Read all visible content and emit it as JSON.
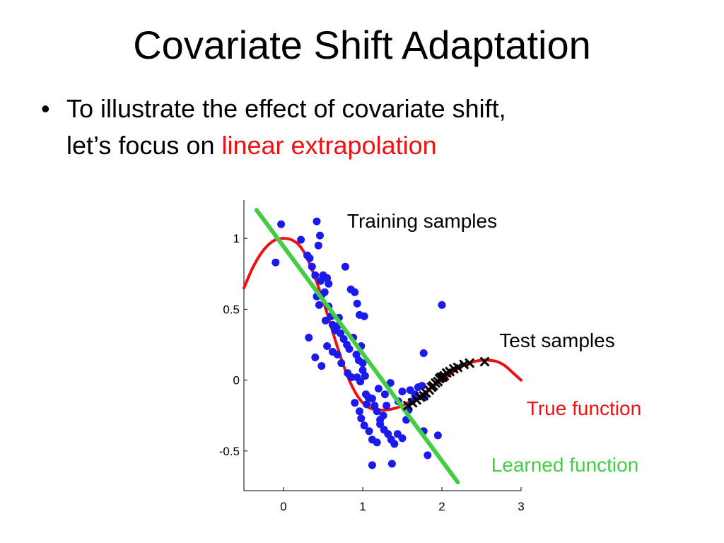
{
  "slide": {
    "title": "Covariate Shift Adaptation",
    "bullet": {
      "marker": "•",
      "line1": "To illustrate the effect of covariate shift,",
      "line2_prefix": "let’s focus on ",
      "line2_highlight": "linear extrapolation"
    }
  },
  "colors": {
    "highlight": "#ee1111",
    "true_function": "#ee1111",
    "learned_function": "#44cc44",
    "training": "#1a1aee",
    "test": "#000000"
  },
  "chart_data": {
    "type": "scatter",
    "xlim": [
      -0.5,
      3
    ],
    "ylim": [
      -0.78,
      1.27
    ],
    "xticks": [
      0,
      1,
      2,
      3
    ],
    "yticks": [
      1,
      0.5,
      0,
      -0.5
    ],
    "xtick_labels": [
      "0",
      "1",
      "2",
      "3"
    ],
    "ytick_labels": [
      "1",
      "0.5",
      "0",
      "-0.5"
    ],
    "grid": false,
    "annotations": {
      "training": "Training samples",
      "test": "Test samples",
      "true_function": "True function",
      "learned_function": "Learned function"
    },
    "true_function_points": [
      [
        -0.5,
        0.65
      ],
      [
        -0.4,
        0.78
      ],
      [
        -0.3,
        0.88
      ],
      [
        -0.2,
        0.95
      ],
      [
        -0.1,
        0.99
      ],
      [
        0.0,
        1.0
      ],
      [
        0.1,
        0.99
      ],
      [
        0.2,
        0.95
      ],
      [
        0.3,
        0.86
      ],
      [
        0.4,
        0.72
      ],
      [
        0.5,
        0.56
      ],
      [
        0.6,
        0.38
      ],
      [
        0.7,
        0.2
      ],
      [
        0.8,
        0.04
      ],
      [
        0.9,
        -0.08
      ],
      [
        1.0,
        -0.16
      ],
      [
        1.1,
        -0.2
      ],
      [
        1.2,
        -0.21
      ],
      [
        1.3,
        -0.21
      ],
      [
        1.4,
        -0.2
      ],
      [
        1.5,
        -0.18
      ],
      [
        1.6,
        -0.15
      ],
      [
        1.7,
        -0.12
      ],
      [
        1.8,
        -0.08
      ],
      [
        1.9,
        -0.04
      ],
      [
        2.0,
        0.0
      ],
      [
        2.1,
        0.04
      ],
      [
        2.2,
        0.08
      ],
      [
        2.3,
        0.11
      ],
      [
        2.4,
        0.13
      ],
      [
        2.5,
        0.14
      ],
      [
        2.6,
        0.14
      ],
      [
        2.7,
        0.13
      ],
      [
        2.8,
        0.1
      ],
      [
        2.9,
        0.05
      ],
      [
        3.0,
        0.0
      ]
    ],
    "learned_function_line": [
      [
        -0.34,
        1.2
      ],
      [
        2.2,
        -0.72
      ]
    ],
    "training_samples": [
      [
        -0.1,
        0.83
      ],
      [
        -0.03,
        1.1
      ],
      [
        0.22,
        0.99
      ],
      [
        0.3,
        0.88
      ],
      [
        0.33,
        0.86
      ],
      [
        0.36,
        0.8
      ],
      [
        0.4,
        0.74
      ],
      [
        0.42,
        1.12
      ],
      [
        0.44,
        0.95
      ],
      [
        0.46,
        1.02
      ],
      [
        0.47,
        0.7
      ],
      [
        0.5,
        0.74
      ],
      [
        0.52,
        0.62
      ],
      [
        0.55,
        0.72
      ],
      [
        0.57,
        0.68
      ],
      [
        0.42,
        0.59
      ],
      [
        0.45,
        0.53
      ],
      [
        0.48,
        0.6
      ],
      [
        0.53,
        0.42
      ],
      [
        0.57,
        0.52
      ],
      [
        0.6,
        0.45
      ],
      [
        0.62,
        0.39
      ],
      [
        0.65,
        0.35
      ],
      [
        0.68,
        0.38
      ],
      [
        0.7,
        0.44
      ],
      [
        0.72,
        0.33
      ],
      [
        0.76,
        0.29
      ],
      [
        0.8,
        0.25
      ],
      [
        0.83,
        0.22
      ],
      [
        0.78,
        0.8
      ],
      [
        0.85,
        0.64
      ],
      [
        0.9,
        0.62
      ],
      [
        0.93,
        0.54
      ],
      [
        0.96,
        0.46
      ],
      [
        1.02,
        0.45
      ],
      [
        0.88,
        0.3
      ],
      [
        0.92,
        0.18
      ],
      [
        0.95,
        0.14
      ],
      [
        0.98,
        0.24
      ],
      [
        1.0,
        0.12
      ],
      [
        1.03,
        0.03
      ],
      [
        0.32,
        0.3
      ],
      [
        0.4,
        0.16
      ],
      [
        0.48,
        0.1
      ],
      [
        0.55,
        0.24
      ],
      [
        0.62,
        0.2
      ],
      [
        0.68,
        0.18
      ],
      [
        0.73,
        0.12
      ],
      [
        0.81,
        0.05
      ],
      [
        0.86,
        0.02
      ],
      [
        0.93,
        0.02
      ],
      [
        0.97,
        -0.01
      ],
      [
        1.04,
        -0.1
      ],
      [
        1.07,
        -0.12
      ],
      [
        1.12,
        -0.13
      ],
      [
        1.15,
        -0.18
      ],
      [
        1.18,
        -0.22
      ],
      [
        1.22,
        -0.28
      ],
      [
        1.26,
        -0.25
      ],
      [
        1.3,
        -0.18
      ],
      [
        0.9,
        -0.16
      ],
      [
        0.96,
        -0.22
      ],
      [
        0.98,
        -0.27
      ],
      [
        1.02,
        -0.32
      ],
      [
        1.08,
        -0.36
      ],
      [
        1.12,
        -0.42
      ],
      [
        1.18,
        -0.44
      ],
      [
        1.22,
        -0.31
      ],
      [
        1.27,
        -0.35
      ],
      [
        1.32,
        -0.38
      ],
      [
        1.36,
        -0.42
      ],
      [
        1.4,
        -0.45
      ],
      [
        1.44,
        -0.38
      ],
      [
        1.5,
        -0.41
      ],
      [
        1.55,
        -0.28
      ],
      [
        1.58,
        -0.21
      ],
      [
        1.62,
        -0.15
      ],
      [
        1.66,
        -0.1
      ],
      [
        1.6,
        -0.07
      ],
      [
        1.7,
        -0.05
      ],
      [
        1.75,
        -0.04
      ],
      [
        1.78,
        -0.12
      ],
      [
        1.5,
        -0.08
      ],
      [
        1.45,
        -0.15
      ],
      [
        1.05,
        -0.17
      ],
      [
        1.2,
        -0.06
      ],
      [
        1.28,
        -0.1
      ],
      [
        1.35,
        -0.02
      ],
      [
        1.12,
        -0.6
      ],
      [
        1.37,
        -0.59
      ],
      [
        1.77,
        0.19
      ],
      [
        1.82,
        -0.53
      ],
      [
        1.77,
        -0.36
      ],
      [
        1.95,
        -0.39
      ],
      [
        2.0,
        0.53
      ],
      [
        1.0,
        0.07
      ]
    ],
    "test_samples": [
      [
        1.57,
        -0.18
      ],
      [
        1.63,
        -0.16
      ],
      [
        1.68,
        -0.14
      ],
      [
        1.73,
        -0.12
      ],
      [
        1.77,
        -0.11
      ],
      [
        1.8,
        -0.09
      ],
      [
        1.84,
        -0.07
      ],
      [
        1.87,
        -0.05
      ],
      [
        1.89,
        -0.04
      ],
      [
        1.92,
        -0.02
      ],
      [
        1.95,
        -0.01
      ],
      [
        1.97,
        0.01
      ],
      [
        1.99,
        0.02
      ],
      [
        2.01,
        0.02
      ],
      [
        2.03,
        0.03
      ],
      [
        2.06,
        0.05
      ],
      [
        2.1,
        0.06
      ],
      [
        2.15,
        0.08
      ],
      [
        2.2,
        0.09
      ],
      [
        2.28,
        0.11
      ],
      [
        2.35,
        0.12
      ],
      [
        2.54,
        0.13
      ]
    ]
  }
}
